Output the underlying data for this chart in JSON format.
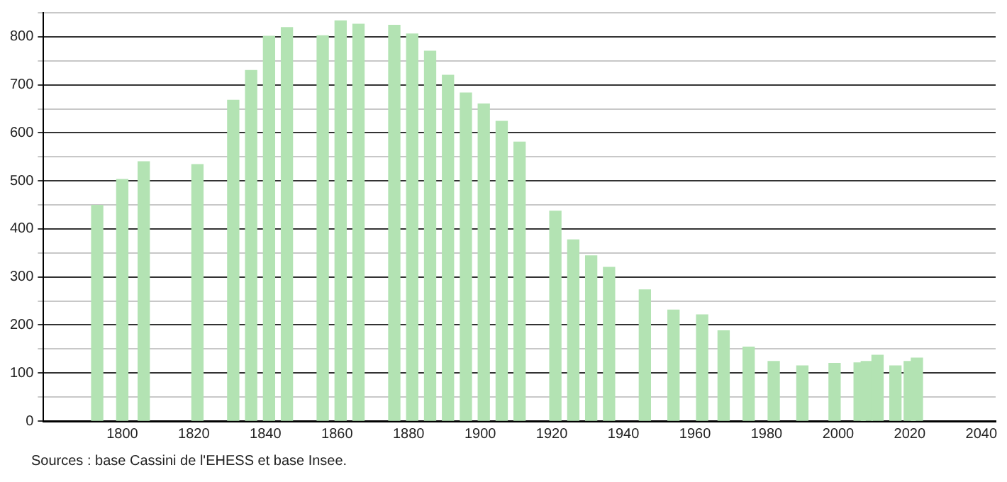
{
  "chart_data": {
    "type": "bar",
    "x": [
      1793,
      1800,
      1806,
      1821,
      1831,
      1836,
      1841,
      1846,
      1856,
      1861,
      1866,
      1876,
      1881,
      1886,
      1891,
      1896,
      1901,
      1906,
      1911,
      1921,
      1926,
      1931,
      1936,
      1946,
      1954,
      1962,
      1968,
      1975,
      1982,
      1990,
      1999,
      2006,
      2008,
      2011,
      2016,
      2020,
      2022
    ],
    "values": [
      449,
      503,
      540,
      534,
      668,
      730,
      801,
      819,
      802,
      833,
      826,
      824,
      806,
      770,
      720,
      683,
      660,
      624,
      581,
      437,
      377,
      344,
      320,
      273,
      231,
      221,
      188,
      154,
      124,
      115,
      120,
      121,
      124,
      137,
      115,
      124,
      131
    ],
    "color": "#b3e3b3",
    "xlim": [
      1778,
      2044
    ],
    "xticks": [
      1800,
      1820,
      1840,
      1860,
      1880,
      1900,
      1920,
      1940,
      1960,
      1980,
      2000,
      2020,
      2040
    ],
    "ylim": [
      0,
      850
    ],
    "yticks": [
      0,
      {
        "value": 50,
        "label": null
      },
      100,
      {
        "value": 150,
        "label": null
      },
      200,
      {
        "value": 250,
        "label": null
      },
      300,
      {
        "value": 350,
        "label": null
      },
      400,
      {
        "value": 450,
        "label": null
      },
      500,
      {
        "value": 550,
        "label": null
      },
      600,
      {
        "value": 650,
        "label": null
      },
      700,
      {
        "value": 750,
        "label": null
      },
      800,
      {
        "value": 850,
        "label": null
      }
    ],
    "grid": "y",
    "legend": false,
    "annotations": [
      "Sources : base Cassini de l'EHESS et base Insee."
    ]
  }
}
